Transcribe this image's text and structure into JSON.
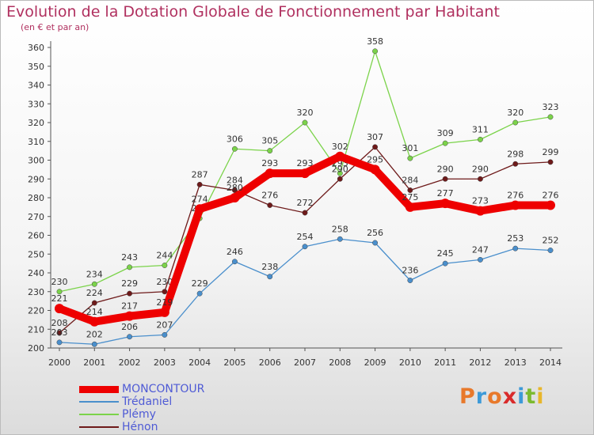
{
  "title": "Evolution de la Dotation Globale de Fonctionnement par Habitant",
  "subtitle": "(en € et par an)",
  "logo": {
    "text": "Proxiti",
    "colors": [
      "#e8792b",
      "#3d9ad8",
      "#e8792b",
      "#d92b2b",
      "#3d9ad8",
      "#7cba2f",
      "#e8b62b"
    ]
  },
  "chart_data": {
    "type": "line",
    "x": [
      "2000",
      "2001",
      "2002",
      "2003",
      "2004",
      "2005",
      "2006",
      "2007",
      "2008",
      "2009",
      "2010",
      "2011",
      "2012",
      "2013",
      "2014"
    ],
    "ylim": [
      200,
      360
    ],
    "yticks": [
      200,
      210,
      220,
      230,
      240,
      250,
      260,
      270,
      280,
      290,
      300,
      310,
      320,
      330,
      340,
      350,
      360
    ],
    "grid": false,
    "series": [
      {
        "name": "Plémy",
        "color": "#7bd34a",
        "values": [
          230,
          234,
          243,
          244,
          269,
          306,
          305,
          320,
          293,
          358,
          301,
          309,
          311,
          320,
          323
        ]
      },
      {
        "name": "Hénon",
        "color": "#6e1a1a",
        "values": [
          208,
          224,
          229,
          230,
          287,
          284,
          276,
          272,
          290,
          307,
          284,
          290,
          290,
          298,
          299
        ]
      },
      {
        "name": "Trédaniel",
        "color": "#4a8fcc",
        "values": [
          203,
          202,
          206,
          207,
          229,
          246,
          238,
          254,
          258,
          256,
          236,
          245,
          247,
          253,
          252
        ]
      },
      {
        "name": "MONCONTOUR",
        "color": "#ee0000",
        "values": [
          221,
          214,
          217,
          219,
          274,
          280,
          293,
          293,
          302,
          295,
          275,
          277,
          273,
          276,
          276
        ]
      }
    ],
    "legend_order": [
      "MONCONTOUR",
      "Trédaniel",
      "Plémy",
      "Hénon"
    ]
  }
}
